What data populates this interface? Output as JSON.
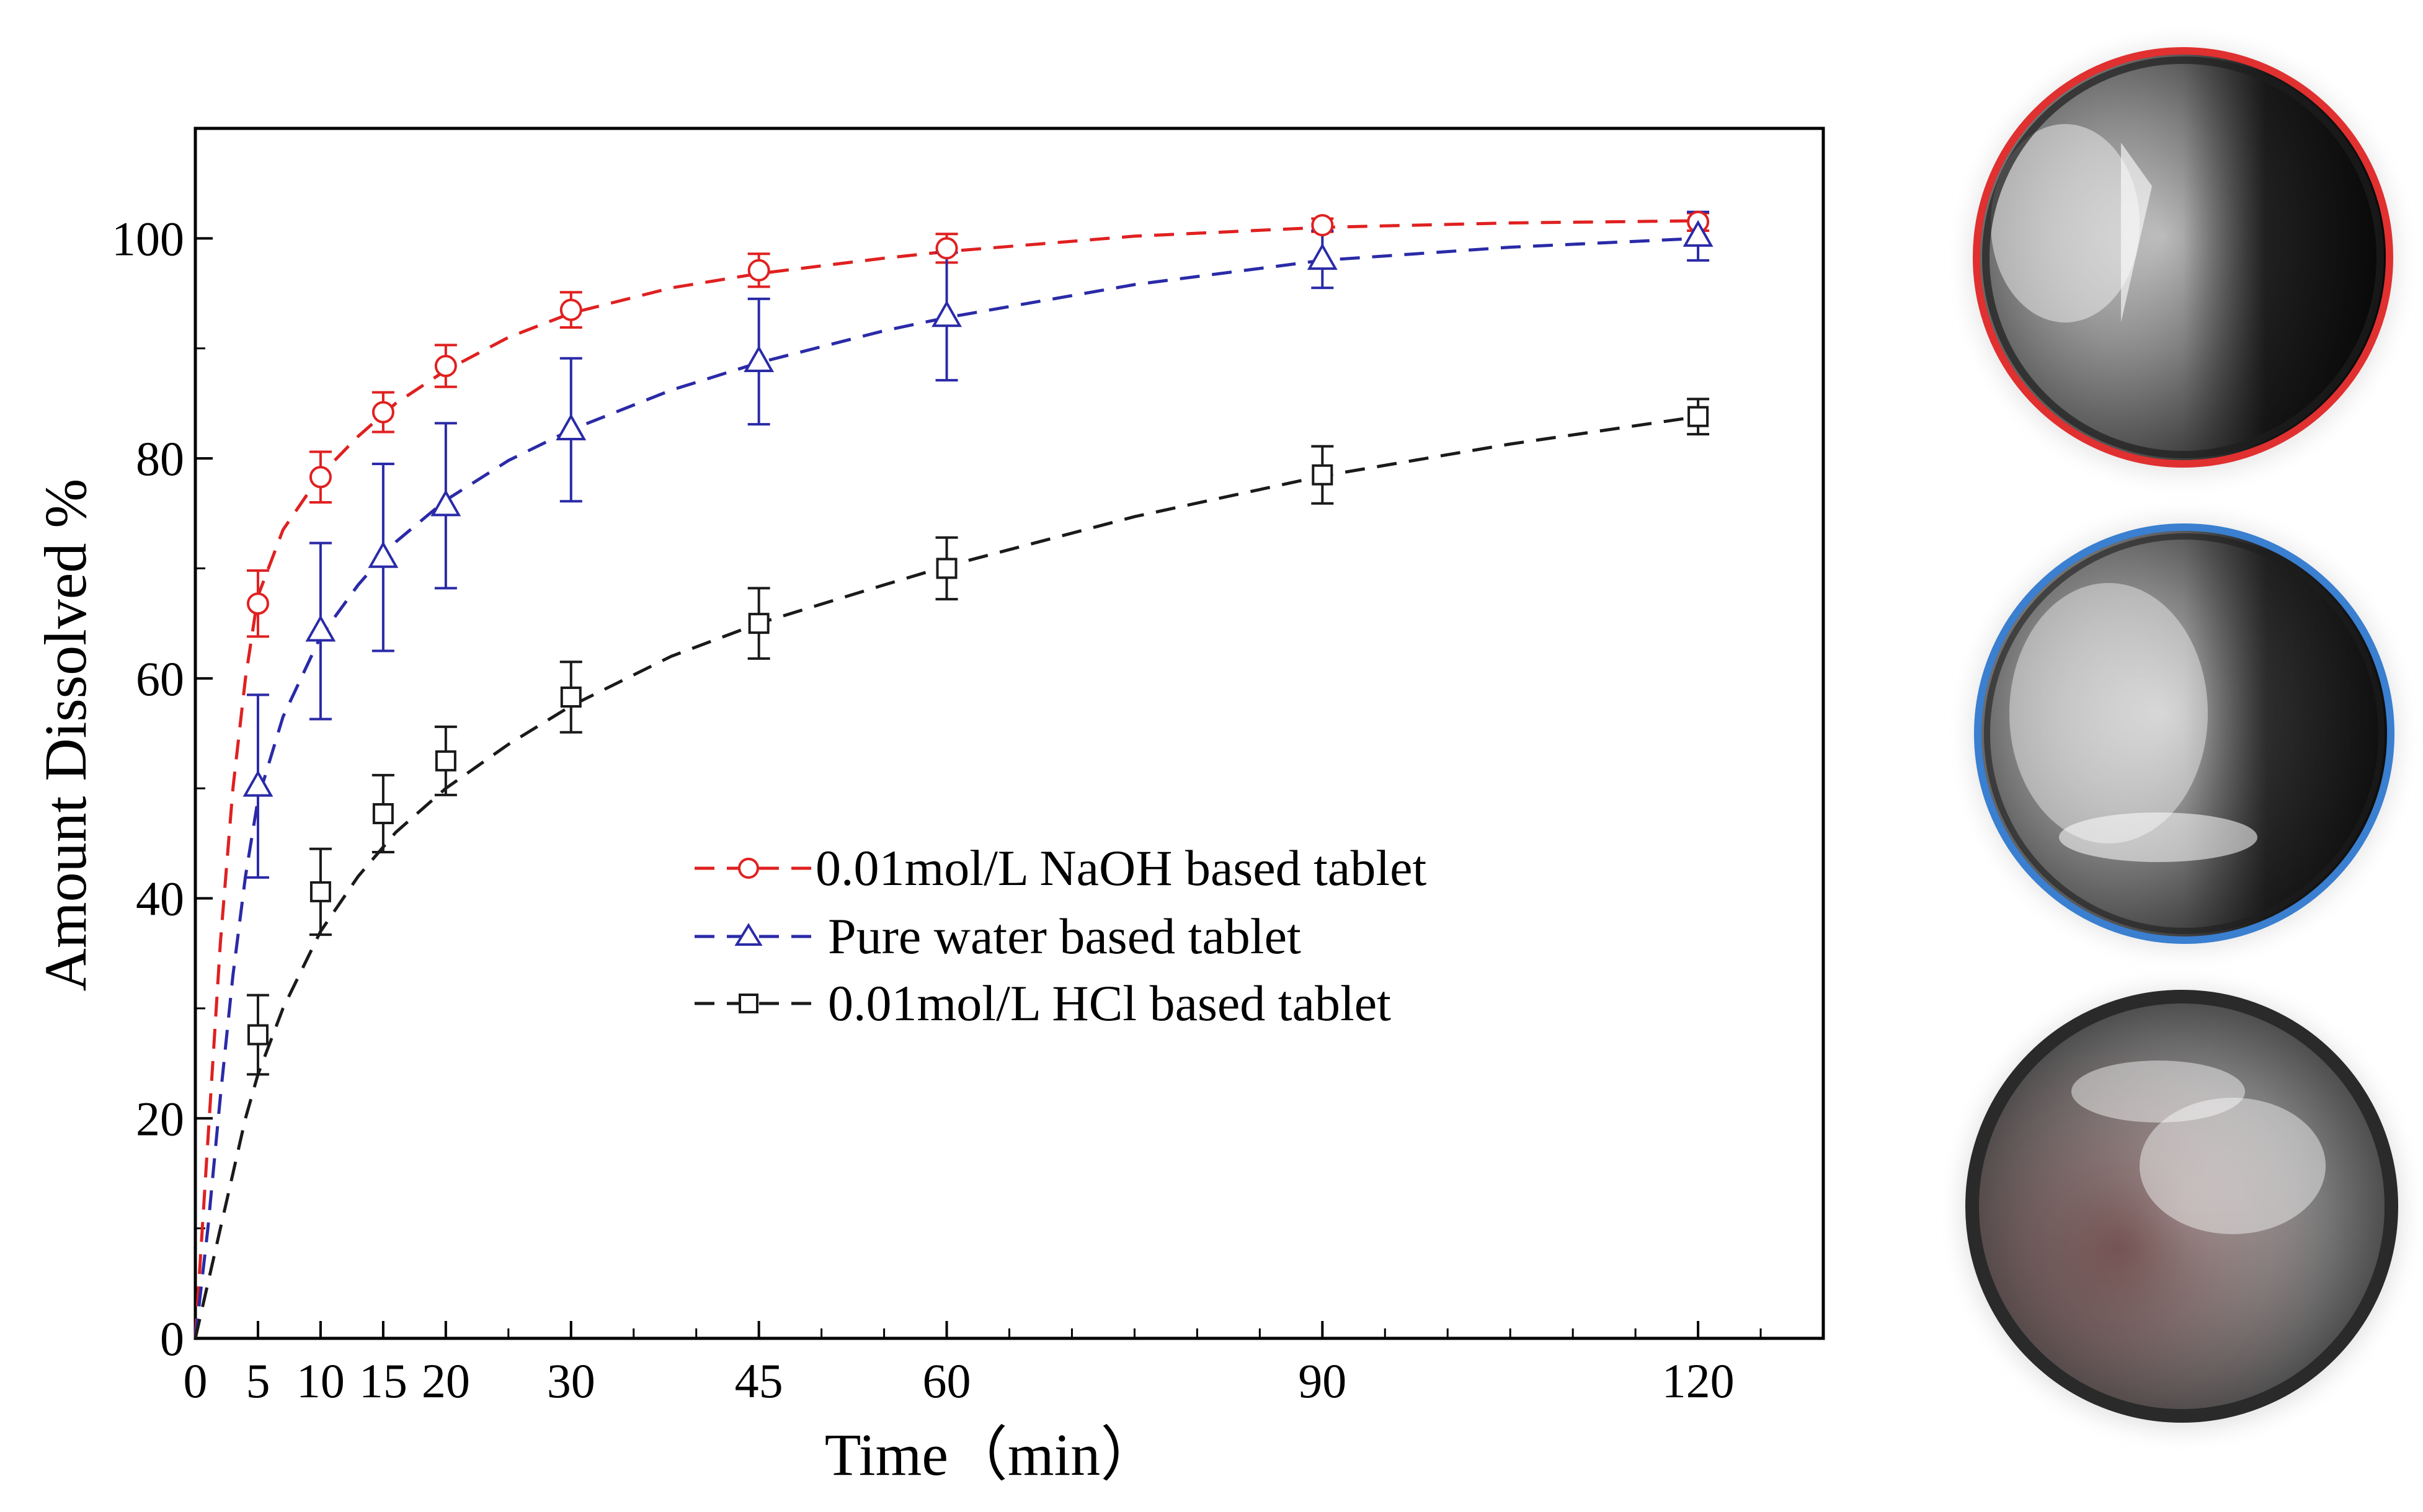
{
  "chart_data": {
    "type": "line",
    "xlabel": "Time（min）",
    "ylabel": "Amount Dissolved %",
    "xlim": [
      0,
      130
    ],
    "ylim": [
      0,
      110
    ],
    "xticks": [
      0,
      5,
      10,
      15,
      20,
      30,
      45,
      60,
      90,
      120
    ],
    "yticks": [
      0,
      20,
      40,
      60,
      80,
      100
    ],
    "legend_position": "center",
    "series": [
      {
        "name": "0.01mol/L NaOH based tablet",
        "color": "#e02020",
        "marker": "circle",
        "x": [
          5,
          10,
          15,
          20,
          30,
          45,
          60,
          90,
          120
        ],
        "y": [
          66.8,
          78.3,
          84.2,
          88.4,
          93.5,
          97.1,
          99.1,
          101.2,
          101.5
        ],
        "err": [
          3.0,
          2.3,
          1.8,
          1.9,
          1.6,
          1.5,
          1.3,
          0.6,
          0.8
        ],
        "fit_x": [
          0,
          1,
          2,
          3,
          4,
          5,
          7,
          10,
          13,
          16,
          20,
          25,
          30,
          38,
          45,
          55,
          60,
          75,
          90,
          105,
          120
        ],
        "fit_y": [
          0,
          18,
          36,
          50,
          60,
          67.5,
          73.5,
          78.5,
          82,
          85,
          88,
          91,
          93.2,
          95.5,
          96.8,
          98.2,
          98.8,
          100.2,
          101,
          101.4,
          101.6
        ]
      },
      {
        "name": "Pure water based tablet",
        "color": "#2a2aa8",
        "marker": "triangle",
        "x": [
          5,
          10,
          15,
          20,
          30,
          45,
          60,
          90,
          120
        ],
        "y": [
          50.2,
          64.3,
          71.0,
          75.7,
          82.6,
          88.8,
          92.9,
          98.1,
          100.2
        ],
        "err": [
          8.3,
          8.0,
          8.5,
          7.5,
          6.5,
          5.7,
          5.8,
          2.6,
          2.2
        ],
        "fit_x": [
          0,
          1,
          2,
          3,
          4,
          5,
          7,
          10,
          13,
          16,
          20,
          25,
          30,
          38,
          45,
          55,
          60,
          75,
          90,
          105,
          120
        ],
        "fit_y": [
          0,
          10,
          22,
          33,
          42,
          49,
          56.5,
          63.8,
          68.5,
          72.4,
          76.2,
          79.8,
          82.6,
          86.2,
          88.7,
          91.6,
          92.8,
          95.8,
          98,
          99.2,
          100
        ]
      },
      {
        "name": "0.01mol/L HCl based tablet",
        "color": "#1a1a1a",
        "marker": "square",
        "x": [
          5,
          10,
          15,
          20,
          30,
          45,
          60,
          90,
          120
        ],
        "y": [
          27.6,
          40.6,
          47.7,
          52.5,
          58.3,
          65.0,
          70.0,
          78.5,
          83.8
        ],
        "err": [
          3.6,
          3.9,
          3.5,
          3.1,
          3.2,
          3.2,
          2.8,
          2.6,
          1.6
        ],
        "fit_x": [
          0,
          1,
          2,
          3,
          4,
          5,
          7,
          10,
          13,
          16,
          20,
          25,
          30,
          38,
          45,
          55,
          60,
          75,
          90,
          105,
          120
        ],
        "fit_y": [
          0,
          5,
          10,
          15,
          20,
          24,
          30,
          37,
          42,
          46,
          50,
          54,
          57.5,
          62,
          65,
          68.5,
          70.2,
          74.7,
          78.4,
          81.3,
          83.8
        ]
      }
    ]
  },
  "photos": [
    {
      "name": "naoh-tablet-photo",
      "ring_color": "#e03030"
    },
    {
      "name": "water-tablet-photo",
      "ring_color": "#3a7fd0"
    },
    {
      "name": "hcl-tablet-photo",
      "ring_color": "#2a2a2a"
    }
  ]
}
